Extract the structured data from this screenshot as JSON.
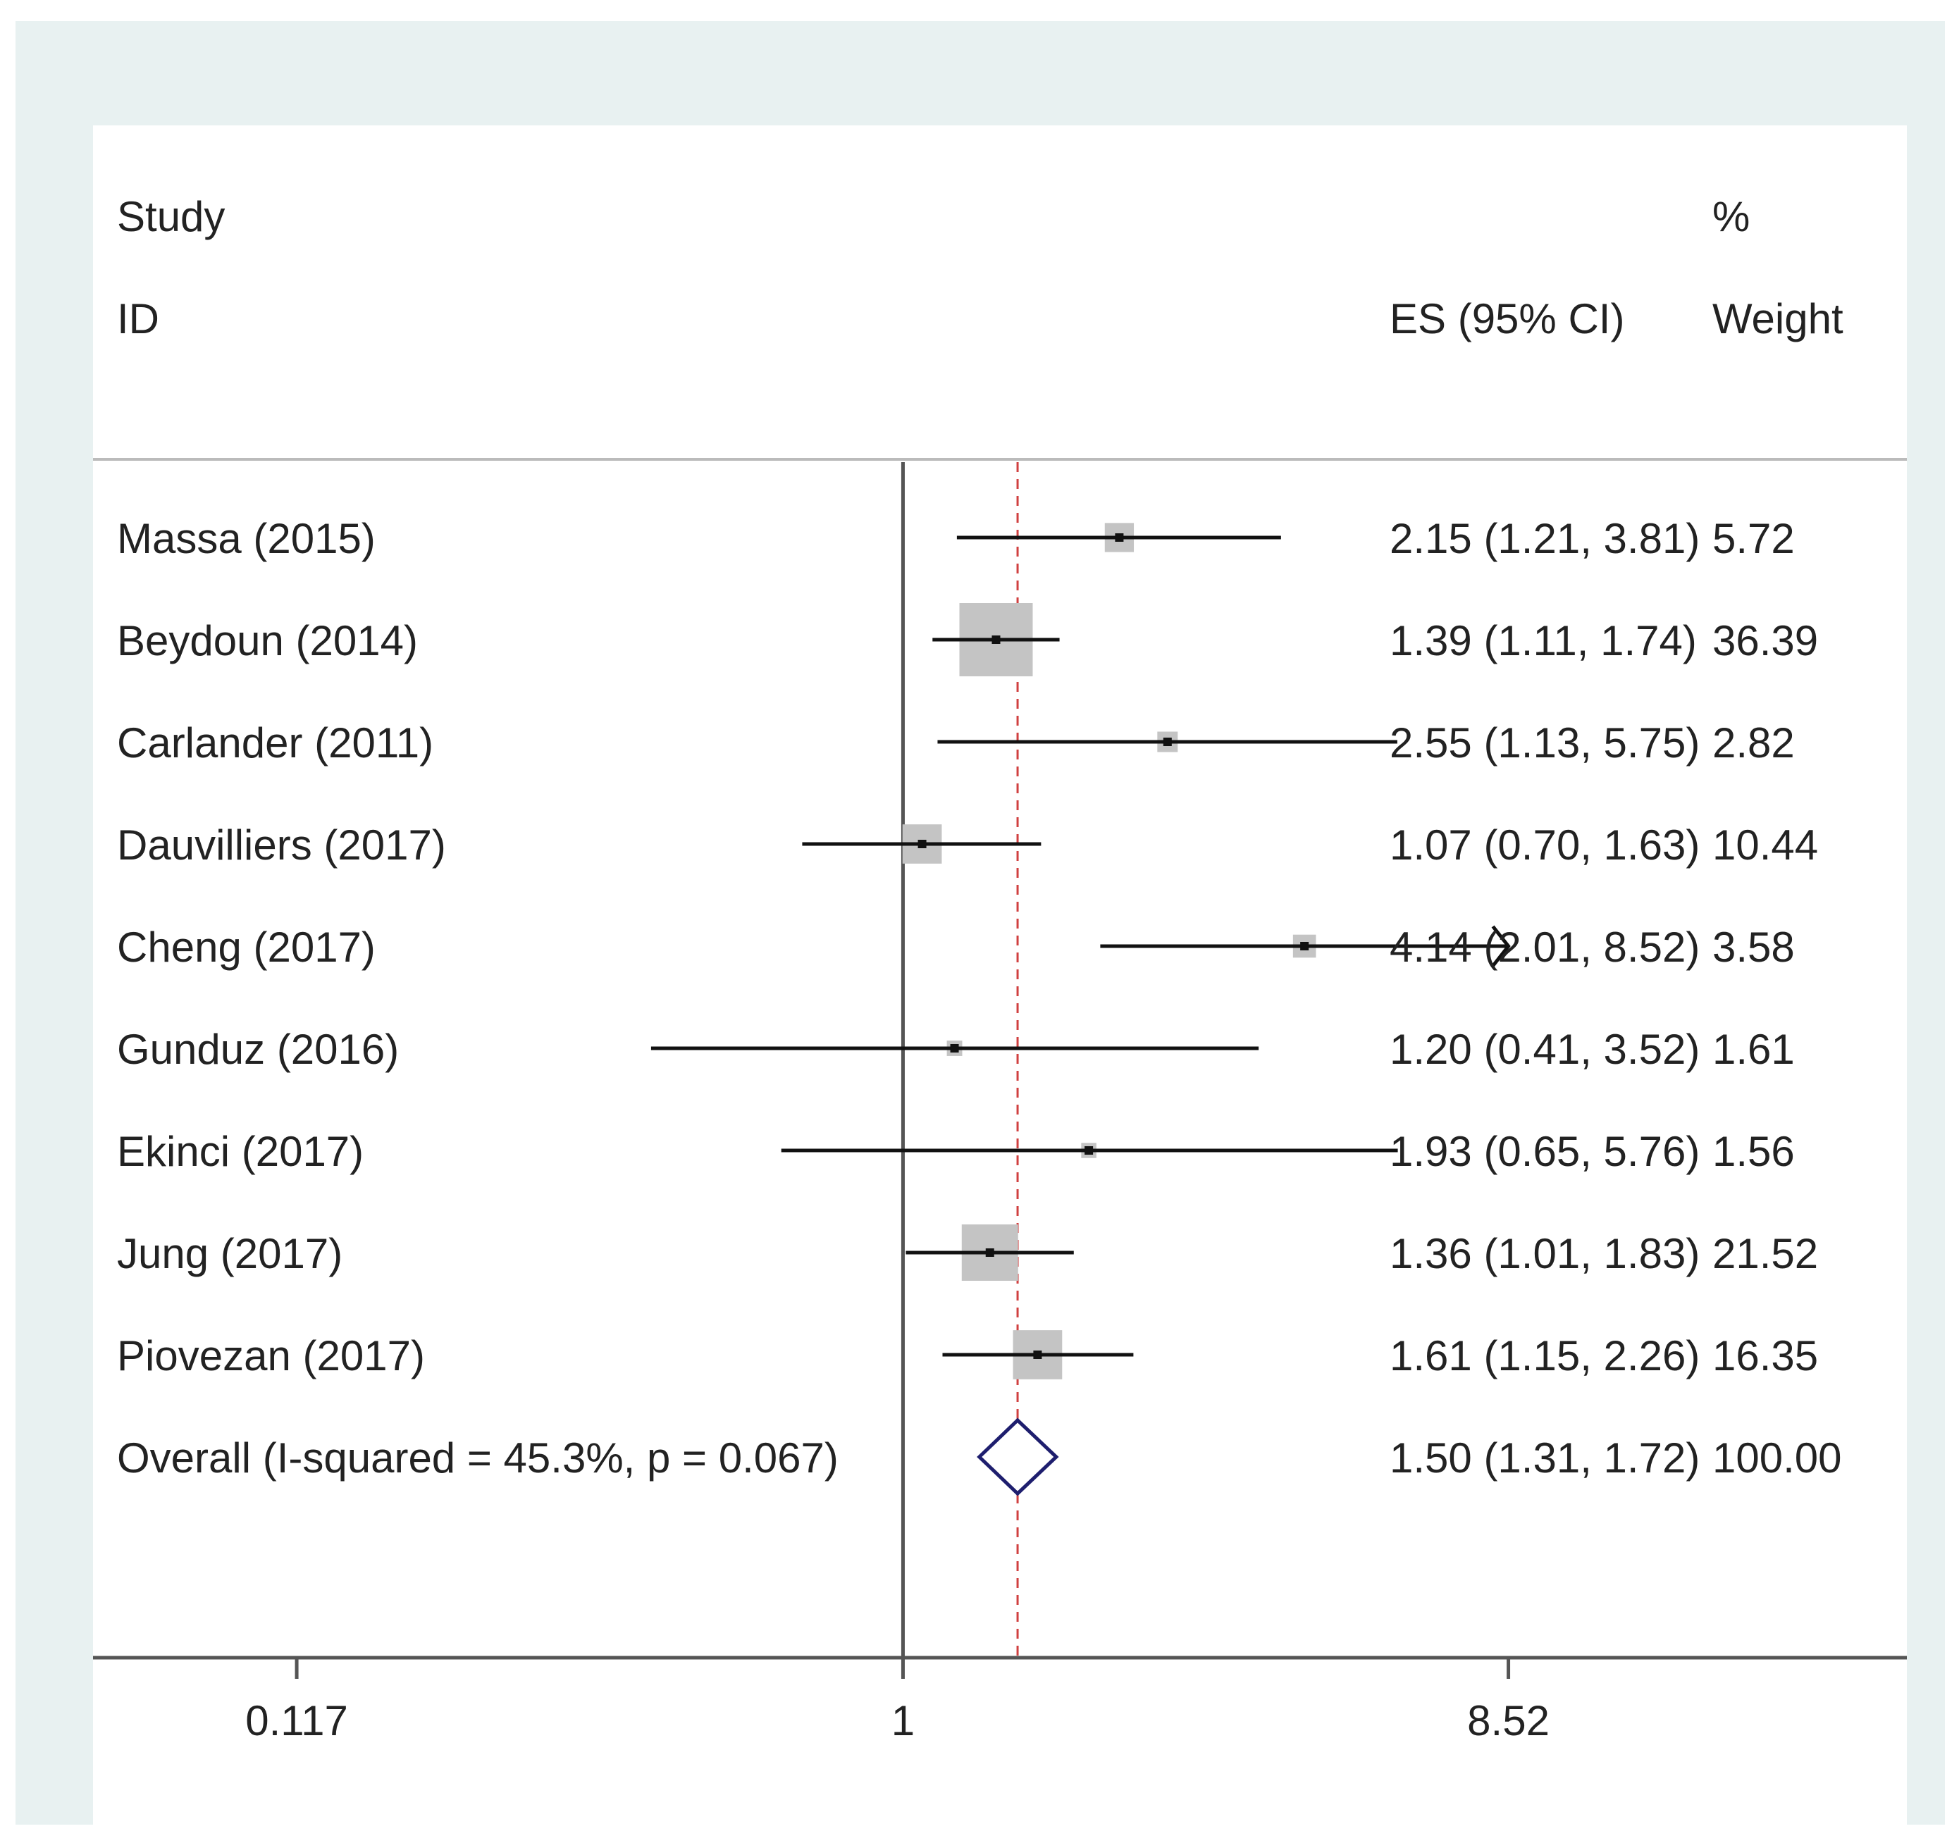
{
  "chart_data": {
    "type": "forest",
    "header": {
      "study": "Study",
      "id": "ID",
      "es": "ES (95% CI)",
      "pct": "%",
      "weight": "Weight"
    },
    "studies": [
      {
        "name": "Massa (2015)",
        "es": 2.15,
        "lo": 1.21,
        "hi": 3.81,
        "es_text": "2.15 (1.21, 3.81)",
        "weight": 5.72,
        "weight_text": "5.72"
      },
      {
        "name": "Beydoun (2014)",
        "es": 1.39,
        "lo": 1.11,
        "hi": 1.74,
        "es_text": "1.39 (1.11, 1.74)",
        "weight": 36.39,
        "weight_text": "36.39"
      },
      {
        "name": "Carlander (2011)",
        "es": 2.55,
        "lo": 1.13,
        "hi": 5.75,
        "es_text": "2.55 (1.13, 5.75)",
        "weight": 2.82,
        "weight_text": "2.82"
      },
      {
        "name": "Dauvilliers (2017)",
        "es": 1.07,
        "lo": 0.7,
        "hi": 1.63,
        "es_text": "1.07 (0.70, 1.63)",
        "weight": 10.44,
        "weight_text": "10.44"
      },
      {
        "name": "Cheng (2017)",
        "es": 4.14,
        "lo": 2.01,
        "hi": 8.52,
        "es_text": "4.14 (2.01, 8.52)",
        "weight": 3.58,
        "weight_text": "3.58",
        "arrow": true
      },
      {
        "name": "Gunduz (2016)",
        "es": 1.2,
        "lo": 0.41,
        "hi": 3.52,
        "es_text": "1.20 (0.41, 3.52)",
        "weight": 1.61,
        "weight_text": "1.61"
      },
      {
        "name": "Ekinci (2017)",
        "es": 1.93,
        "lo": 0.65,
        "hi": 5.76,
        "es_text": "1.93 (0.65, 5.76)",
        "weight": 1.56,
        "weight_text": "1.56"
      },
      {
        "name": "Jung (2017)",
        "es": 1.36,
        "lo": 1.01,
        "hi": 1.83,
        "es_text": "1.36 (1.01, 1.83)",
        "weight": 21.52,
        "weight_text": "21.52"
      },
      {
        "name": "Piovezan (2017)",
        "es": 1.61,
        "lo": 1.15,
        "hi": 2.26,
        "es_text": "1.61 (1.15, 2.26)",
        "weight": 16.35,
        "weight_text": "16.35"
      }
    ],
    "overall": {
      "name": "Overall  (I-squared = 45.3%, p = 0.067)",
      "es": 1.5,
      "lo": 1.31,
      "hi": 1.72,
      "es_text": "1.50 (1.31, 1.72)",
      "weight_text": "100.00"
    },
    "xscale": "log",
    "xlim": [
      0.0569,
      34.9
    ],
    "xticks": [
      {
        "value": 0.117,
        "label": "0.117"
      },
      {
        "value": 1,
        "label": "1"
      },
      {
        "value": 8.52,
        "label": "8.52"
      }
    ],
    "null_line": 1,
    "colors": {
      "frame": "#e8f1f1",
      "square": "#c4c4c4",
      "ci": "#111111",
      "ref_line": "#555555",
      "dash_line": "#d04040",
      "diamond": "#1e1e6e",
      "text": "#222222"
    }
  }
}
